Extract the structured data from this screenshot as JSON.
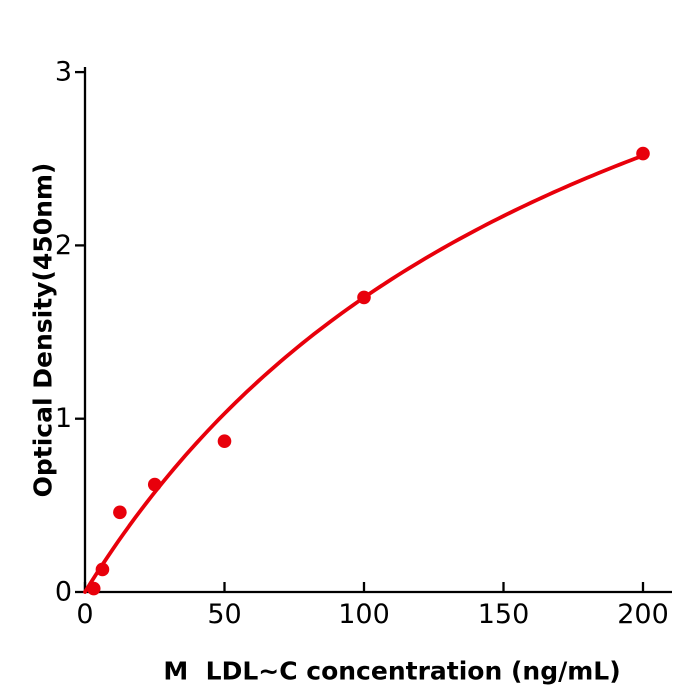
{
  "figure": {
    "background": "#ffffff"
  },
  "chart_data": {
    "type": "scatter",
    "title": "",
    "xlabel": "M  LDL~C concentration (ng/mL)",
    "ylabel": "Optical Density(450nm)",
    "x_tick_labels": [
      "0",
      "50",
      "100",
      "150",
      "200"
    ],
    "x_tick_values": [
      0,
      50,
      100,
      150,
      200
    ],
    "y_tick_labels": [
      "0",
      "1",
      "2",
      "3"
    ],
    "y_tick_values": [
      0,
      1,
      2,
      3
    ],
    "xlim": [
      0,
      210
    ],
    "ylim": [
      0,
      3.03
    ],
    "grid": false,
    "legend_position": "none",
    "points": [
      {
        "x": 3.125,
        "y": 0.02
      },
      {
        "x": 6.25,
        "y": 0.13
      },
      {
        "x": 12.5,
        "y": 0.46
      },
      {
        "x": 25,
        "y": 0.62
      },
      {
        "x": 50,
        "y": 0.87
      },
      {
        "x": 100,
        "y": 1.7
      },
      {
        "x": 200,
        "y": 2.53
      }
    ],
    "fit_curve": {
      "model": "y = Vmax*x / (K + x)",
      "Vmax": 4.86,
      "K": 186,
      "x_start": 0,
      "x_end": 200
    },
    "colors": {
      "marker": "#e8000b",
      "line": "#e8000b",
      "axis": "#000000",
      "tick_label": "#000000"
    }
  }
}
